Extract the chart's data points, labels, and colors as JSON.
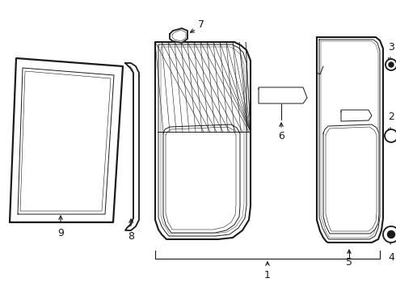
{
  "bg_color": "#ffffff",
  "line_color": "#1a1a1a",
  "fig_width": 4.9,
  "fig_height": 3.6,
  "dpi": 100,
  "lw_main": 1.3,
  "lw_thin": 0.7,
  "lw_detail": 0.5
}
